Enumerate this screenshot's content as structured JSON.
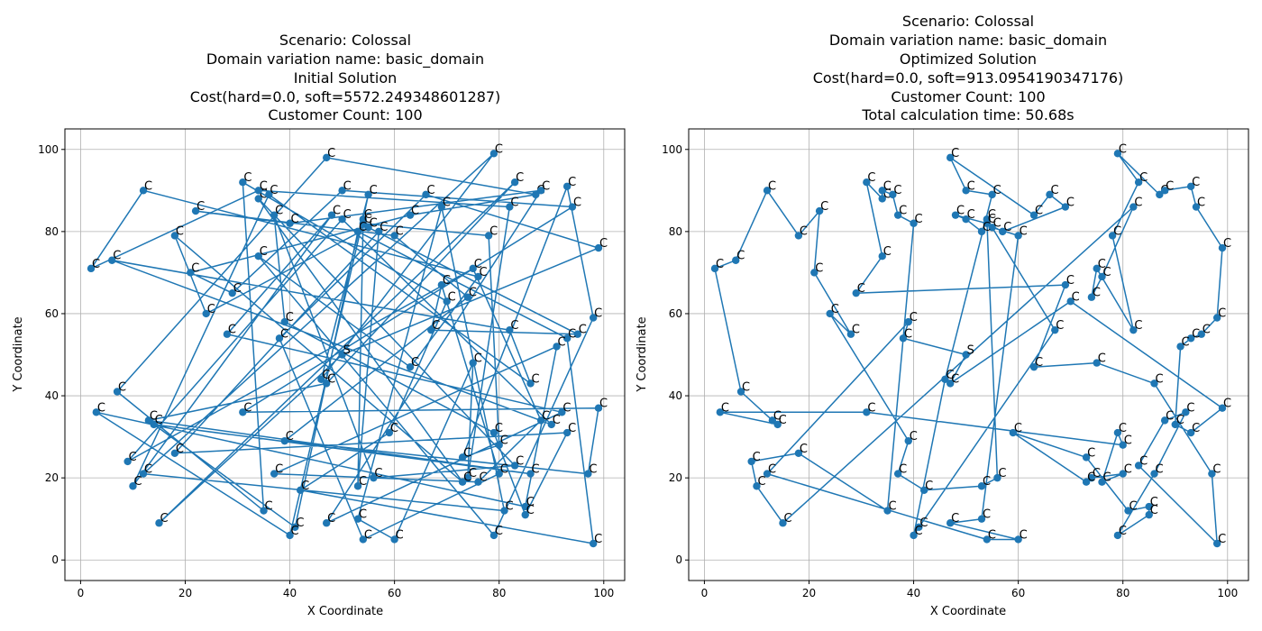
{
  "chart_data": [
    {
      "type": "scatter",
      "title_lines": [
        "Scenario: Colossal",
        "Domain variation name: basic_domain",
        "Initial Solution",
        "Cost(hard=0.0, soft=5572.249348601287)",
        "Customer Count: 100"
      ],
      "xlabel": "X Coordinate",
      "ylabel": "Y Coordinate",
      "xlim": [
        -3,
        104
      ],
      "ylim": [
        -5,
        105
      ],
      "xticks": [
        0,
        20,
        40,
        60,
        80,
        100
      ],
      "yticks": [
        0,
        20,
        40,
        60,
        80,
        100
      ],
      "grid": true,
      "color": "#1f77b4",
      "depot_label": "S",
      "customer_label": "C",
      "order": [
        0,
        57,
        5,
        15,
        37,
        65,
        85,
        43,
        59,
        9,
        18,
        21,
        68,
        90,
        80,
        34,
        93,
        16,
        69,
        75,
        63,
        96,
        8,
        33,
        11,
        49,
        70,
        72,
        55,
        58,
        76,
        88,
        86,
        47,
        22,
        24,
        91,
        50,
        67,
        84,
        38,
        36,
        6,
        73,
        98,
        52,
        41,
        2,
        10,
        40,
        26,
        74,
        61,
        31,
        66,
        82,
        46,
        97,
        13,
        62,
        23,
        48,
        83,
        92,
        99,
        12,
        17,
        81,
        35,
        54,
        94,
        20,
        7,
        45,
        30,
        78,
        64,
        29,
        56,
        1,
        87,
        19,
        4,
        53,
        3,
        25,
        95,
        89,
        44,
        71,
        32,
        77,
        60,
        14,
        39,
        28,
        79,
        27,
        42,
        51,
        100,
        0
      ]
    },
    {
      "type": "scatter",
      "title_lines": [
        "Scenario: Colossal",
        "Domain variation name: basic_domain",
        "Optimized Solution",
        "Cost(hard=0.0, soft=913.0954190347176)",
        "Customer Count: 100",
        "Total calculation time: 50.68s"
      ],
      "xlabel": "X Coordinate",
      "ylabel": "Y Coordinate",
      "xlim": [
        -3,
        104
      ],
      "ylim": [
        -5,
        105
      ],
      "xticks": [
        0,
        20,
        40,
        60,
        80,
        100
      ],
      "yticks": [
        0,
        20,
        40,
        60,
        80,
        100
      ],
      "grid": true,
      "color": "#1f77b4",
      "depot_label": "S",
      "customer_label": "C",
      "order": [
        0,
        15,
        16,
        98,
        37,
        38,
        35,
        36,
        7,
        9,
        43,
        39,
        40,
        41,
        2,
        1,
        3,
        4,
        5,
        6,
        8,
        11,
        12,
        13,
        14,
        10,
        34,
        33,
        32,
        31,
        30,
        18,
        17,
        19,
        20,
        21,
        22,
        23,
        24,
        25,
        27,
        28,
        26,
        29,
        70,
        69,
        66,
        65,
        67,
        68,
        71,
        72,
        73,
        74,
        75,
        76,
        79,
        81,
        82,
        80,
        77,
        78,
        83,
        84,
        86,
        85,
        87,
        88,
        89,
        90,
        91,
        92,
        93,
        94,
        95,
        96,
        97,
        99,
        100,
        50,
        47,
        45,
        46,
        48,
        49,
        51,
        52,
        53,
        54,
        55,
        56,
        57,
        58,
        59,
        60,
        61,
        62,
        63,
        64,
        44,
        42,
        0
      ]
    }
  ],
  "points": [
    [
      50,
      50
    ],
    [
      50,
      90
    ],
    [
      55,
      89
    ],
    [
      47,
      98
    ],
    [
      63,
      84
    ],
    [
      66,
      89
    ],
    [
      69,
      86
    ],
    [
      60,
      79
    ],
    [
      57,
      80
    ],
    [
      55,
      81
    ],
    [
      54,
      83
    ],
    [
      54,
      82
    ],
    [
      48,
      84
    ],
    [
      50,
      83
    ],
    [
      53,
      80
    ],
    [
      38,
      54
    ],
    [
      39,
      58
    ],
    [
      28,
      55
    ],
    [
      24,
      60
    ],
    [
      21,
      70
    ],
    [
      22,
      85
    ],
    [
      18,
      79
    ],
    [
      12,
      90
    ],
    [
      6,
      73
    ],
    [
      2,
      71
    ],
    [
      7,
      41
    ],
    [
      3,
      36
    ],
    [
      13,
      34
    ],
    [
      14,
      33
    ],
    [
      31,
      36
    ],
    [
      39,
      29
    ],
    [
      37,
      21
    ],
    [
      42,
      17
    ],
    [
      53,
      18
    ],
    [
      56,
      20
    ],
    [
      47,
      9
    ],
    [
      53,
      10
    ],
    [
      54,
      5
    ],
    [
      60,
      5
    ],
    [
      41,
      8
    ],
    [
      40,
      6
    ],
    [
      46,
      44
    ],
    [
      47,
      43
    ],
    [
      67,
      56
    ],
    [
      70,
      63
    ],
    [
      74,
      64
    ],
    [
      75,
      71
    ],
    [
      76,
      69
    ],
    [
      82,
      56
    ],
    [
      78,
      79
    ],
    [
      82,
      86
    ],
    [
      83,
      92
    ],
    [
      79,
      99
    ],
    [
      87,
      89
    ],
    [
      88,
      90
    ],
    [
      93,
      91
    ],
    [
      94,
      86
    ],
    [
      99,
      76
    ],
    [
      98,
      59
    ],
    [
      95,
      55
    ],
    [
      93,
      54
    ],
    [
      91,
      52
    ],
    [
      90,
      33
    ],
    [
      93,
      31
    ],
    [
      99,
      37
    ],
    [
      80,
      21
    ],
    [
      76,
      19
    ],
    [
      74,
      20
    ],
    [
      73,
      19
    ],
    [
      79,
      31
    ],
    [
      80,
      28
    ],
    [
      59,
      31
    ],
    [
      73,
      25
    ],
    [
      81,
      12
    ],
    [
      85,
      13
    ],
    [
      85,
      11
    ],
    [
      79,
      6
    ],
    [
      98,
      4
    ],
    [
      97,
      21
    ],
    [
      86,
      21
    ],
    [
      83,
      23
    ],
    [
      92,
      36
    ],
    [
      88,
      34
    ],
    [
      86,
      43
    ],
    [
      75,
      48
    ],
    [
      69,
      67
    ],
    [
      63,
      47
    ],
    [
      29,
      65
    ],
    [
      34,
      74
    ],
    [
      31,
      92
    ],
    [
      34,
      88
    ],
    [
      34,
      90
    ],
    [
      36,
      89
    ],
    [
      37,
      84
    ],
    [
      40,
      82
    ],
    [
      35,
      12
    ],
    [
      18,
      26
    ],
    [
      9,
      24
    ],
    [
      12,
      21
    ],
    [
      10,
      18
    ],
    [
      15,
      9
    ]
  ]
}
